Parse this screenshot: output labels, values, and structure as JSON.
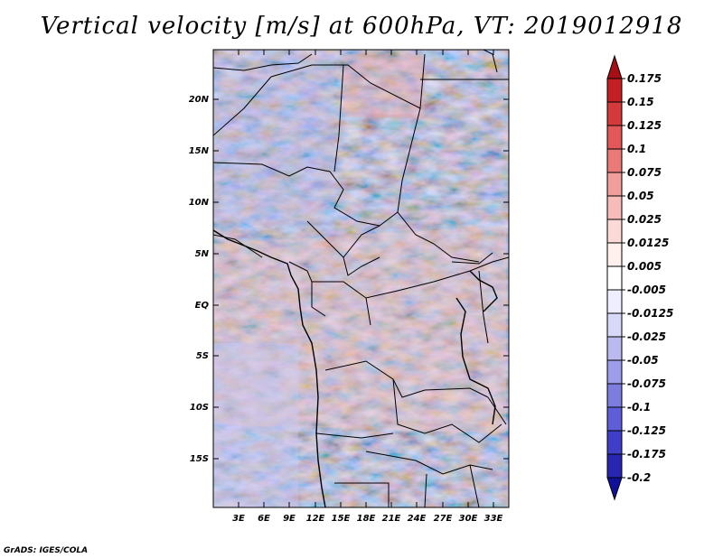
{
  "title": "Vertical velocity [m/s] at 600hPa, VT: 2019012918",
  "credit": "GrADS: IGES/COLA",
  "map": {
    "lat_labels": [
      "20N",
      "15N",
      "10N",
      "5N",
      "EQ",
      "5S",
      "10S",
      "15S"
    ],
    "lon_labels": [
      "3E",
      "6E",
      "9E",
      "12E",
      "15E",
      "18E",
      "21E",
      "24E",
      "27E",
      "30E",
      "33E"
    ]
  },
  "colorbar": {
    "levels": [
      "0.175",
      "0.15",
      "0.125",
      "0.1",
      "0.075",
      "0.05",
      "0.025",
      "0.0125",
      "0.005",
      "-0.005",
      "-0.0125",
      "-0.025",
      "-0.05",
      "-0.075",
      "-0.1",
      "-0.125",
      "-0.175",
      "-0.2"
    ],
    "colors": [
      "#a50f15",
      "#c41f25",
      "#d53a3a",
      "#e25858",
      "#e97a78",
      "#f19d9a",
      "#f7bcb8",
      "#fbd9d6",
      "#fff0ee",
      "#ffffff",
      "#eeeeff",
      "#d8d8f8",
      "#babaf1",
      "#9c9ce8",
      "#7d7de0",
      "#5e5ed8",
      "#3e3ec8",
      "#2626b0",
      "#10109a"
    ]
  }
}
